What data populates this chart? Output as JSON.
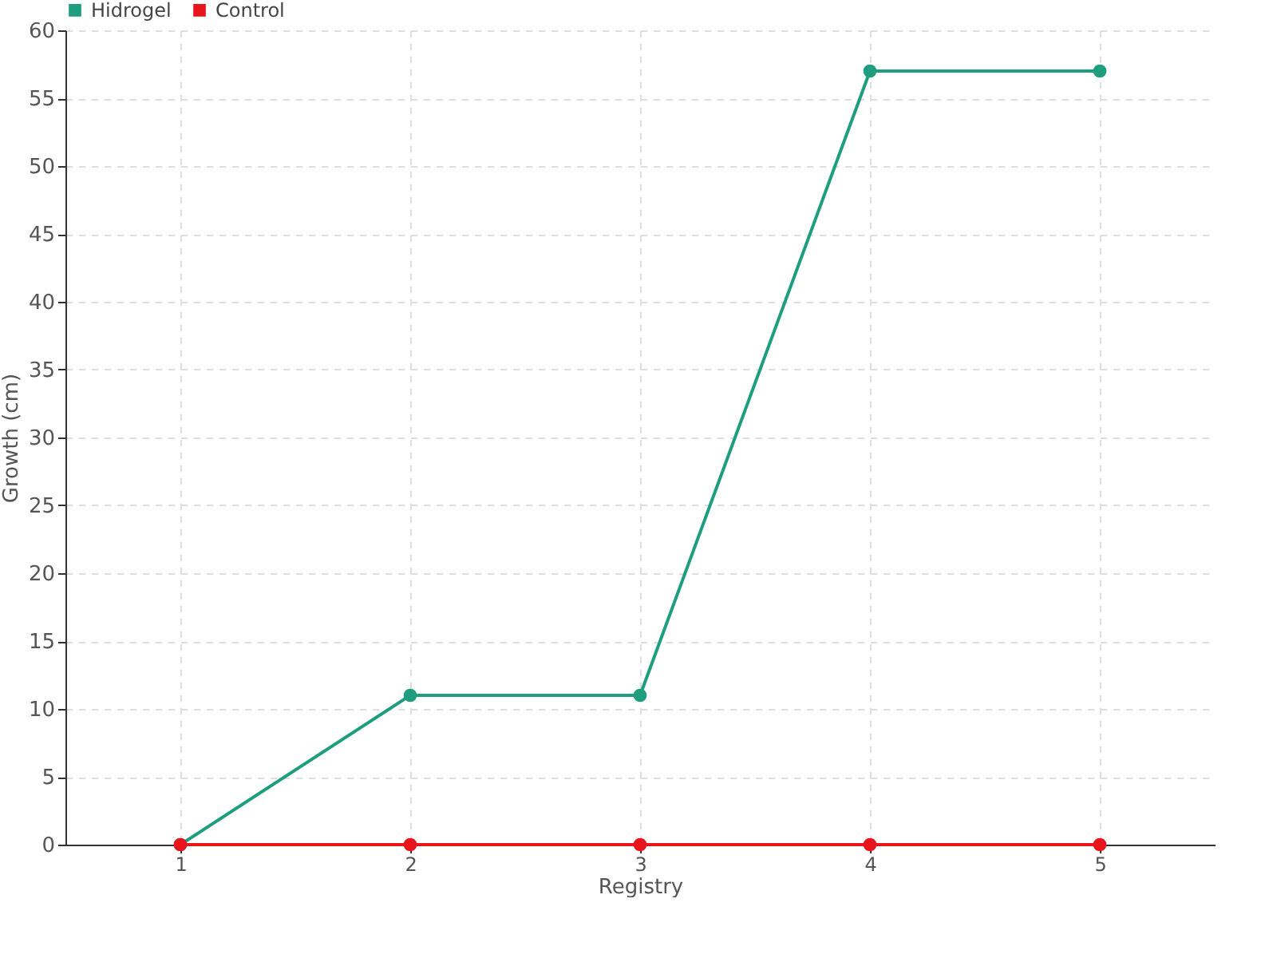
{
  "chart_data": {
    "type": "line",
    "xlabel": "Registry",
    "ylabel": "Growth (cm)",
    "x": [
      1,
      2,
      3,
      4,
      5
    ],
    "series": [
      {
        "name": "Hidrogel",
        "color": "#1f9e7f",
        "values": [
          0,
          11,
          11,
          57,
          57
        ]
      },
      {
        "name": "Control",
        "color": "#e8141c",
        "values": [
          0,
          0,
          0,
          0,
          0
        ]
      }
    ],
    "xlim": [
      0.5,
      5.5
    ],
    "xticks": [
      1,
      2,
      3,
      4,
      5
    ],
    "ylim": [
      0,
      60
    ],
    "yticks": [
      0,
      5,
      10,
      15,
      20,
      25,
      30,
      35,
      40,
      45,
      50,
      55,
      60
    ],
    "grid": true,
    "legend": "top left",
    "marker": "circle",
    "line_style": "solid"
  }
}
